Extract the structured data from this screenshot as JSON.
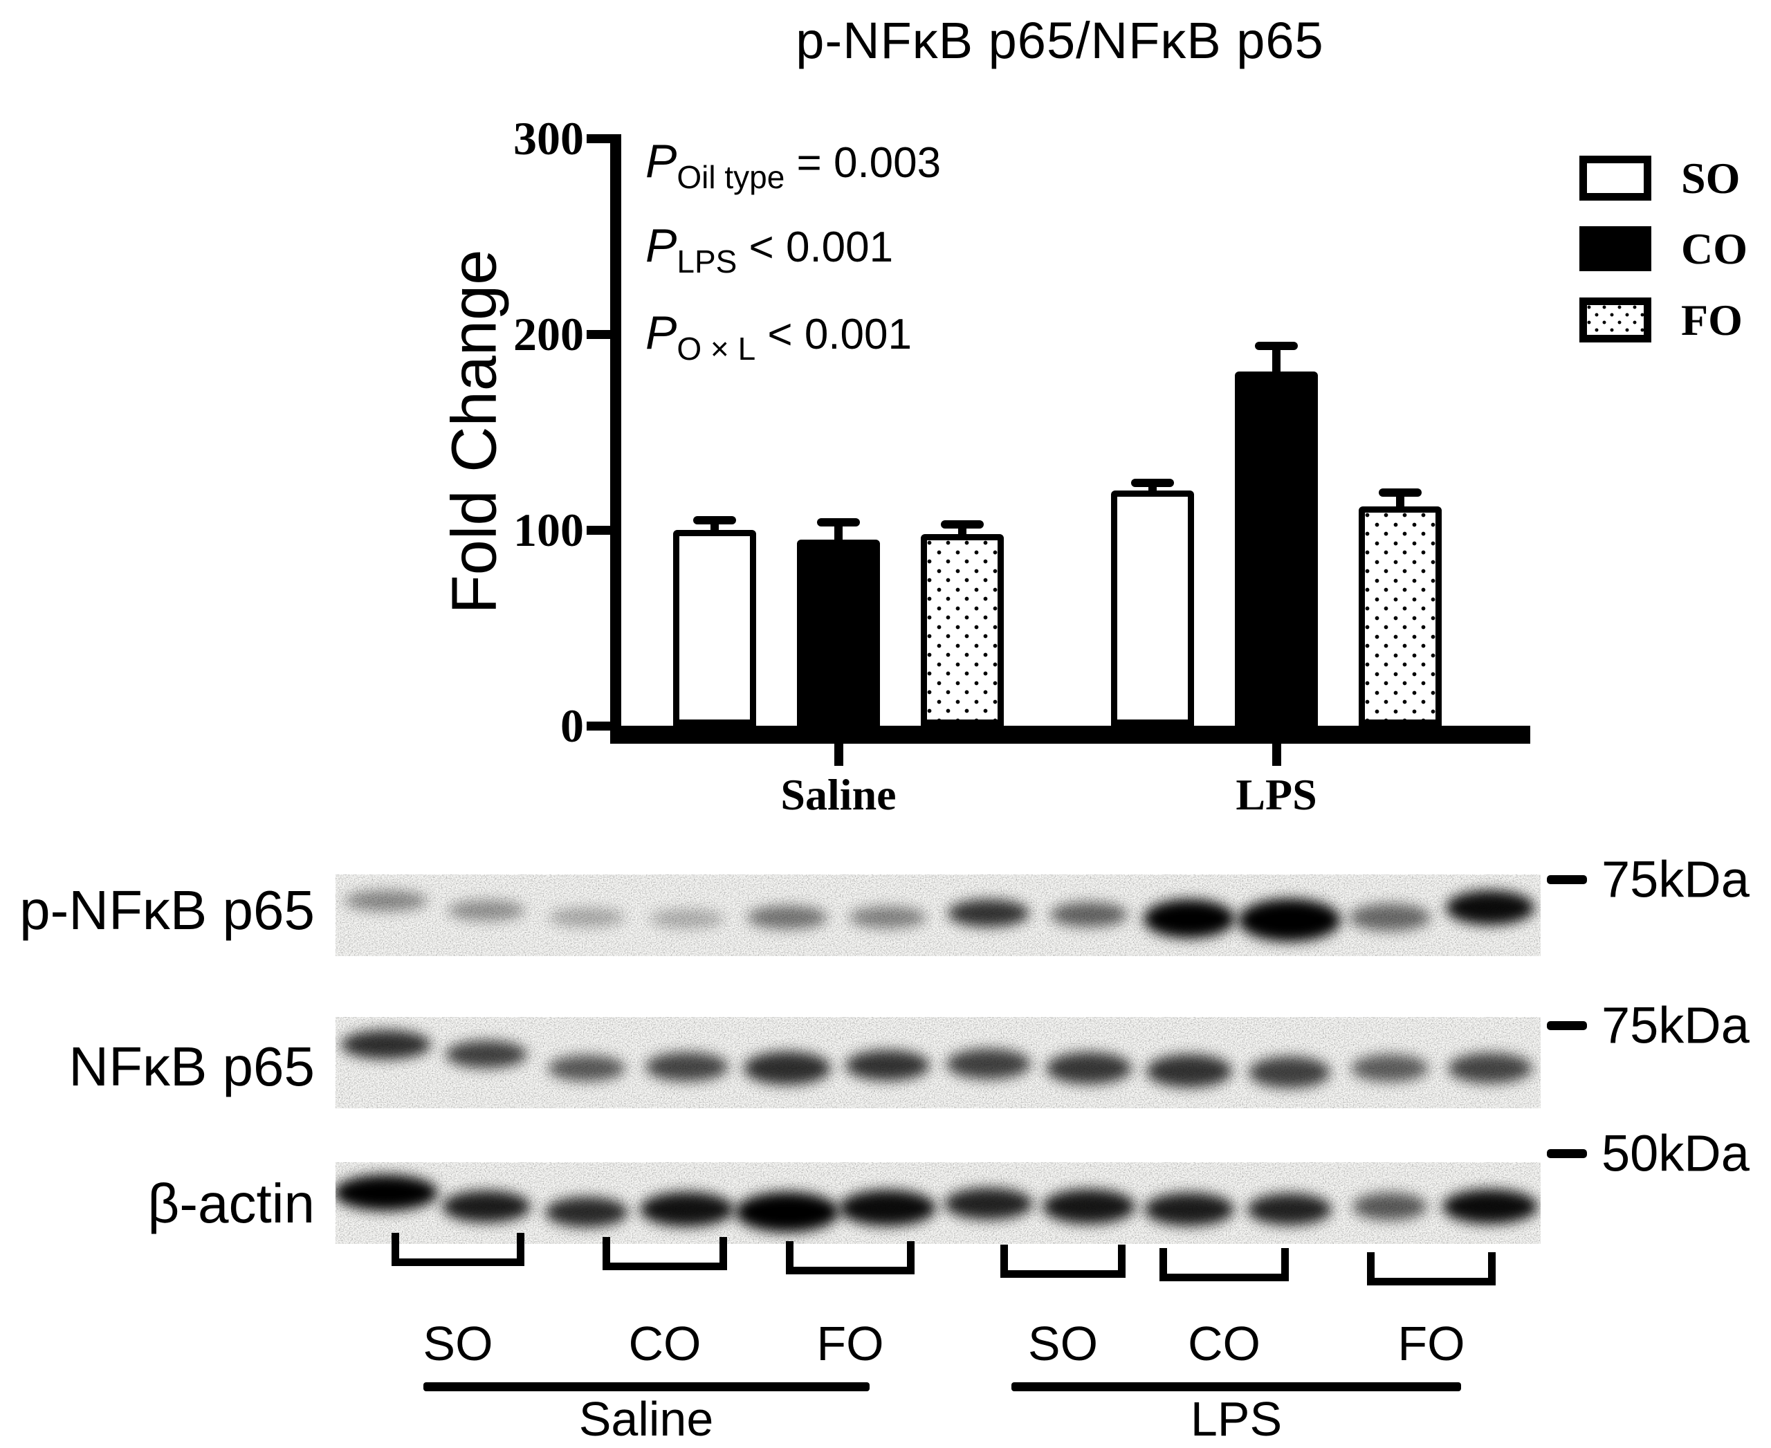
{
  "figure": {
    "title": "p-NFκB p65/NFκB p65"
  },
  "chart_data": {
    "type": "bar",
    "title": "p-NFκB p65/NFκB p65",
    "xlabel": "",
    "ylabel": "Fold Change",
    "ylim": [
      0,
      300
    ],
    "yticks": [
      0,
      100,
      200,
      300
    ],
    "grid": false,
    "categories": [
      "Saline",
      "LPS"
    ],
    "series": [
      {
        "name": "SO",
        "fill": "white",
        "values": [
          100,
          120
        ],
        "errors": [
          5,
          4
        ]
      },
      {
        "name": "CO",
        "fill": "black",
        "values": [
          95,
          181
        ],
        "errors": [
          9,
          13
        ]
      },
      {
        "name": "FO",
        "fill": "dotted",
        "values": [
          98,
          112
        ],
        "errors": [
          5,
          7
        ]
      }
    ],
    "legend_position": "upper right",
    "annotations": [
      {
        "symbol": "P",
        "sub": "Oil type",
        "rest": " = 0.003"
      },
      {
        "symbol": "P",
        "sub": "LPS",
        "rest": " < 0.001"
      },
      {
        "symbol": "P",
        "sub": "O × L",
        "rest": " < 0.001"
      }
    ]
  },
  "blots": {
    "lanes": 12,
    "rows": [
      {
        "label": "p-NFκB p65",
        "marker": "75kDa",
        "bands": {
          "intensity": [
            0.42,
            0.38,
            0.28,
            0.26,
            0.5,
            0.44,
            0.78,
            0.58,
            1.0,
            1.0,
            0.55,
            0.95
          ],
          "dy": [
            -26,
            -12,
            -2,
            0,
            -2,
            -2,
            -8,
            -6,
            0,
            2,
            -2,
            -16
          ],
          "w": [
            120,
            112,
            110,
            108,
            116,
            112,
            118,
            112,
            132,
            148,
            118,
            128
          ],
          "h": [
            30,
            30,
            28,
            28,
            34,
            32,
            40,
            36,
            56,
            62,
            40,
            50
          ]
        }
      },
      {
        "label": "NFκB p65",
        "marker": "75kDa",
        "bands": {
          "intensity": [
            0.8,
            0.72,
            0.62,
            0.7,
            0.8,
            0.78,
            0.72,
            0.76,
            0.78,
            0.72,
            0.6,
            0.7
          ],
          "dy": [
            -34,
            -20,
            0,
            -2,
            0,
            -4,
            -6,
            0,
            4,
            6,
            0,
            0
          ],
          "w": [
            130,
            118,
            112,
            120,
            126,
            122,
            122,
            124,
            124,
            118,
            112,
            122
          ],
          "h": [
            42,
            40,
            38,
            42,
            48,
            44,
            44,
            46,
            48,
            46,
            40,
            44
          ]
        }
      },
      {
        "label": "β-actin",
        "marker": "50kDa",
        "bands": {
          "intensity": [
            1.0,
            0.88,
            0.82,
            0.92,
            1.0,
            0.95,
            0.85,
            0.9,
            0.88,
            0.85,
            0.62,
            0.95
          ],
          "dy": [
            -22,
            -2,
            6,
            2,
            6,
            0,
            -6,
            -2,
            2,
            2,
            -2,
            -2
          ],
          "w": [
            150,
            128,
            120,
            136,
            150,
            140,
            128,
            134,
            130,
            122,
            108,
            138
          ],
          "h": [
            52,
            46,
            44,
            50,
            58,
            52,
            46,
            50,
            48,
            46,
            40,
            50
          ]
        }
      }
    ],
    "lane_groups": [
      "SO",
      "CO",
      "FO",
      "SO",
      "CO",
      "FO"
    ],
    "treatment_groups": [
      "Saline",
      "LPS"
    ]
  },
  "colors": {
    "ink": "#000000",
    "background": "#ffffff",
    "strip_background": "#f7f7f5"
  }
}
